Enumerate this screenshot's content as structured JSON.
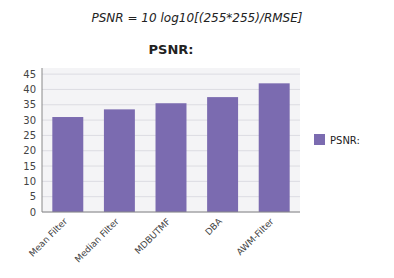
{
  "chart_data": {
    "type": "bar",
    "title": "PSNR:",
    "annotations": [
      "PSNR = 10 log10[(255*255)/RMSE]"
    ],
    "categories": [
      "Mean Filter",
      "Median Filter",
      "MDBUTMF",
      "DBA",
      "AWM-Filter"
    ],
    "series": [
      {
        "name": "PSNR:",
        "color": "#7B6BB0",
        "values": [
          31,
          33.5,
          35.5,
          37.5,
          42
        ]
      }
    ],
    "ylim": [
      0,
      47
    ],
    "yticks": [
      0,
      5,
      10,
      15,
      20,
      25,
      30,
      35,
      40,
      45
    ],
    "grid": true,
    "legend": "right"
  }
}
